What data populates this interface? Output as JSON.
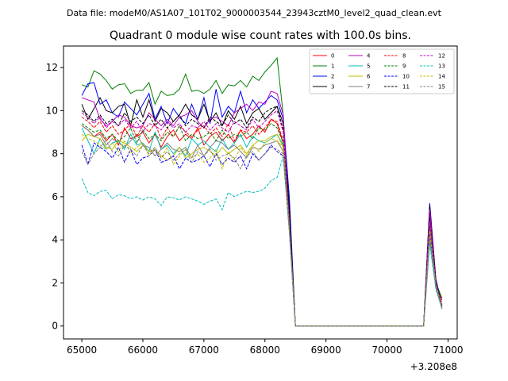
{
  "figure": {
    "suptitle": "Data file: modeM0/AS1A07_101T02_9000003544_23943cztM0_level2_quad_clean.evt"
  },
  "chart_data": {
    "type": "line",
    "title": "Quadrant 0 module wise count rates with 100.0s bins.",
    "xlabel": "",
    "ylabel": "",
    "x_offset_label": "+3.208e8",
    "xlim": [
      64700,
      71150
    ],
    "ylim": [
      -0.6,
      13.0
    ],
    "xticks": [
      65000,
      66000,
      67000,
      68000,
      69000,
      70000,
      71000
    ],
    "xtick_labels": [
      "65000",
      "66000",
      "67000",
      "68000",
      "69000",
      "70000",
      "71000"
    ],
    "yticks": [
      0,
      2,
      4,
      6,
      8,
      10,
      12
    ],
    "ytick_labels": [
      "0",
      "2",
      "4",
      "6",
      "8",
      "10",
      "12"
    ],
    "grid": false,
    "legend_position": "top-right",
    "x": [
      65000,
      65100,
      65200,
      65300,
      65400,
      65500,
      65600,
      65700,
      65800,
      65900,
      66000,
      66100,
      66200,
      66300,
      66400,
      66500,
      66600,
      66700,
      66800,
      66900,
      67000,
      67100,
      67200,
      67300,
      67400,
      67500,
      67600,
      67700,
      67800,
      67900,
      68000,
      68100,
      68200,
      68300,
      68400,
      68500,
      68600,
      68700,
      68800,
      68900,
      69000,
      69100,
      69200,
      69300,
      69400,
      69500,
      69600,
      69700,
      69800,
      69900,
      70000,
      70100,
      70200,
      70300,
      70400,
      70500,
      70600,
      70700,
      70800,
      70900
    ],
    "series": [
      {
        "name": "0",
        "color": "#ff0000",
        "dash": "solid",
        "values": [
          9.3,
          9.1,
          8.8,
          9.0,
          8.6,
          8.9,
          8.4,
          9.2,
          8.7,
          8.8,
          9.0,
          8.5,
          8.9,
          8.3,
          8.8,
          9.1,
          8.6,
          8.9,
          8.7,
          9.2,
          8.4,
          8.8,
          9.0,
          8.6,
          8.9,
          8.5,
          9.1,
          8.7,
          8.9,
          9.3,
          9.0,
          9.6,
          9.4,
          8.5,
          4.8,
          0,
          0,
          0,
          0,
          0,
          0,
          0,
          0,
          0,
          0,
          0,
          0,
          0,
          0,
          0,
          0,
          0,
          0,
          0,
          0,
          0,
          0,
          4.6,
          2.0,
          1.2
        ]
      },
      {
        "name": "1",
        "color": "#008000",
        "dash": "solid",
        "values": [
          11.2,
          11.1,
          11.85,
          11.7,
          11.4,
          11.0,
          11.2,
          11.25,
          10.8,
          10.95,
          10.95,
          11.3,
          10.3,
          10.9,
          10.7,
          10.75,
          11.0,
          11.7,
          10.9,
          10.95,
          10.8,
          11.0,
          11.4,
          10.8,
          11.2,
          11.15,
          11.4,
          11.1,
          11.6,
          11.4,
          11.8,
          12.1,
          12.45,
          9.8,
          5.0,
          0,
          0,
          0,
          0,
          0,
          0,
          0,
          0,
          0,
          0,
          0,
          0,
          0,
          0,
          0,
          0,
          0,
          0,
          0,
          0,
          0,
          0,
          5.2,
          2.0,
          1.3
        ]
      },
      {
        "name": "2",
        "color": "#0000ff",
        "dash": "solid",
        "values": [
          10.7,
          11.25,
          11.3,
          10.3,
          10.5,
          9.9,
          9.7,
          10.4,
          10.1,
          9.8,
          10.3,
          10.8,
          9.6,
          10.2,
          9.4,
          10.1,
          9.7,
          9.4,
          10.3,
          9.6,
          10.6,
          9.4,
          11.0,
          9.7,
          10.2,
          9.9,
          10.9,
          9.9,
          10.5,
          10.1,
          10.4,
          10.7,
          10.5,
          9.6,
          6.0,
          0,
          0,
          0,
          0,
          0,
          0,
          0,
          0,
          0,
          0,
          0,
          0,
          0,
          0,
          0,
          0,
          0,
          0,
          0,
          0,
          0,
          0,
          5.7,
          2.2,
          0.9
        ]
      },
      {
        "name": "3",
        "color": "#000000",
        "dash": "solid",
        "values": [
          10.3,
          9.6,
          10.1,
          10.6,
          10.0,
          9.9,
          10.2,
          10.3,
          9.3,
          10.5,
          9.7,
          10.5,
          9.5,
          10.1,
          9.9,
          9.5,
          9.8,
          10.3,
          9.8,
          9.6,
          10.3,
          9.5,
          9.9,
          9.3,
          10.0,
          9.6,
          10.2,
          9.4,
          9.9,
          10.1,
          9.6,
          9.9,
          10.2,
          9.4,
          5.5,
          0,
          0,
          0,
          0,
          0,
          0,
          0,
          0,
          0,
          0,
          0,
          0,
          0,
          0,
          0,
          0,
          0,
          0,
          0,
          0,
          0,
          0,
          5.6,
          2.1,
          0.9
        ]
      },
      {
        "name": "4",
        "color": "#bf00bf",
        "dash": "solid",
        "values": [
          10.6,
          10.5,
          10.4,
          9.6,
          9.3,
          9.5,
          9.8,
          9.7,
          9.3,
          9.2,
          9.3,
          9.9,
          9.6,
          9.3,
          9.6,
          9.3,
          9.7,
          9.8,
          10.0,
          9.5,
          9.2,
          9.6,
          9.7,
          9.5,
          9.3,
          9.9,
          10.1,
          10.3,
          10.0,
          10.4,
          10.3,
          10.9,
          10.8,
          9.8,
          4.7,
          0,
          0,
          0,
          0,
          0,
          0,
          0,
          0,
          0,
          0,
          0,
          0,
          0,
          0,
          0,
          0,
          0,
          0,
          0,
          0,
          0,
          0,
          5.4,
          2.0,
          0.8
        ]
      },
      {
        "name": "5",
        "color": "#00bfbf",
        "dash": "solid",
        "values": [
          9.2,
          8.6,
          8.0,
          8.7,
          8.2,
          8.5,
          8.6,
          8.2,
          8.9,
          8.4,
          8.5,
          8.1,
          9.0,
          8.2,
          8.4,
          8.0,
          8.3,
          7.9,
          8.7,
          8.4,
          8.6,
          8.3,
          8.1,
          8.7,
          8.2,
          8.5,
          8.9,
          8.3,
          8.8,
          8.6,
          8.5,
          8.7,
          8.9,
          8.4,
          4.5,
          0,
          0,
          0,
          0,
          0,
          0,
          0,
          0,
          0,
          0,
          0,
          0,
          0,
          0,
          0,
          0,
          0,
          0,
          0,
          0,
          0,
          0,
          4.0,
          1.8,
          0.9
        ]
      },
      {
        "name": "6",
        "color": "#bfbf00",
        "dash": "solid",
        "values": [
          8.6,
          8.9,
          8.8,
          8.7,
          8.3,
          8.2,
          8.6,
          8.5,
          8.3,
          8.1,
          8.4,
          8.1,
          8.2,
          7.9,
          7.7,
          7.9,
          8.3,
          7.8,
          8.0,
          8.2,
          8.3,
          8.1,
          7.9,
          8.3,
          8.0,
          8.2,
          8.4,
          8.0,
          8.4,
          8.6,
          8.6,
          8.8,
          8.9,
          8.3,
          4.5,
          0,
          0,
          0,
          0,
          0,
          0,
          0,
          0,
          0,
          0,
          0,
          0,
          0,
          0,
          0,
          0,
          0,
          0,
          0,
          0,
          0,
          0,
          4.5,
          1.9,
          0.9
        ]
      },
      {
        "name": "7",
        "color": "#808080",
        "dash": "solid",
        "values": [
          9.3,
          9.1,
          8.8,
          8.9,
          8.4,
          8.7,
          8.5,
          8.3,
          8.6,
          8.9,
          8.4,
          8.3,
          7.9,
          8.2,
          8.5,
          8.2,
          8.1,
          8.3,
          7.8,
          8.4,
          7.9,
          8.3,
          8.6,
          8.5,
          8.2,
          8.4,
          8.1,
          7.8,
          8.3,
          8.2,
          8.4,
          8.5,
          8.6,
          8.1,
          4.4,
          0,
          0,
          0,
          0,
          0,
          0,
          0,
          0,
          0,
          0,
          0,
          0,
          0,
          0,
          0,
          0,
          0,
          0,
          0,
          0,
          0,
          0,
          4.2,
          1.8,
          0.8
        ]
      },
      {
        "name": "8",
        "color": "#ff0000",
        "dash": "dashed",
        "values": [
          9.7,
          9.5,
          9.2,
          9.5,
          9.0,
          9.3,
          8.9,
          9.1,
          9.4,
          8.8,
          9.3,
          9.0,
          9.4,
          8.7,
          9.2,
          8.8,
          9.3,
          9.0,
          8.8,
          9.1,
          9.3,
          8.9,
          9.2,
          8.8,
          9.4,
          8.6,
          9.1,
          9.0,
          9.3,
          8.9,
          9.2,
          9.6,
          9.5,
          8.6,
          4.8,
          0,
          0,
          0,
          0,
          0,
          0,
          0,
          0,
          0,
          0,
          0,
          0,
          0,
          0,
          0,
          0,
          0,
          0,
          0,
          0,
          0,
          0,
          4.8,
          2.0,
          1.0
        ]
      },
      {
        "name": "9",
        "color": "#008000",
        "dash": "dashed",
        "values": [
          9.4,
          9.2,
          9.0,
          9.1,
          8.7,
          8.9,
          8.6,
          8.8,
          9.2,
          8.5,
          9.1,
          8.7,
          8.9,
          8.6,
          9.0,
          8.8,
          9.3,
          8.6,
          8.9,
          8.7,
          8.8,
          9.0,
          8.6,
          9.1,
          8.7,
          8.9,
          8.8,
          9.0,
          8.7,
          9.2,
          9.1,
          9.4,
          9.2,
          8.5,
          4.7,
          0,
          0,
          0,
          0,
          0,
          0,
          0,
          0,
          0,
          0,
          0,
          0,
          0,
          0,
          0,
          0,
          0,
          0,
          0,
          0,
          0,
          0,
          4.6,
          1.9,
          0.9
        ]
      },
      {
        "name": "10",
        "color": "#0000ff",
        "dash": "dashed",
        "values": [
          8.4,
          7.5,
          8.5,
          8.3,
          8.1,
          7.8,
          8.3,
          7.6,
          8.2,
          7.5,
          7.8,
          7.9,
          8.2,
          7.6,
          7.7,
          7.9,
          7.3,
          7.8,
          7.6,
          7.7,
          7.9,
          7.4,
          8.0,
          7.5,
          7.8,
          7.6,
          7.9,
          7.3,
          8.0,
          7.7,
          8.0,
          8.4,
          8.1,
          7.9,
          4.5,
          0,
          0,
          0,
          0,
          0,
          0,
          0,
          0,
          0,
          0,
          0,
          0,
          0,
          0,
          0,
          0,
          0,
          0,
          0,
          0,
          0,
          0,
          4.3,
          1.9,
          0.9
        ]
      },
      {
        "name": "11",
        "color": "#000000",
        "dash": "dashed",
        "values": [
          10.0,
          9.8,
          9.5,
          9.8,
          9.4,
          9.6,
          9.3,
          9.9,
          9.5,
          9.7,
          9.4,
          9.8,
          9.3,
          9.6,
          9.2,
          9.5,
          9.8,
          9.3,
          9.6,
          9.4,
          9.2,
          9.7,
          9.5,
          9.3,
          9.8,
          9.4,
          9.6,
          9.2,
          9.7,
          9.5,
          9.9,
          10.1,
          10.2,
          9.1,
          5.0,
          0,
          0,
          0,
          0,
          0,
          0,
          0,
          0,
          0,
          0,
          0,
          0,
          0,
          0,
          0,
          0,
          0,
          0,
          0,
          0,
          0,
          0,
          5.0,
          2.1,
          1.0
        ]
      },
      {
        "name": "12",
        "color": "#bf00bf",
        "dash": "dashed",
        "values": [
          9.9,
          9.7,
          9.4,
          9.7,
          9.2,
          9.5,
          9.3,
          9.6,
          9.2,
          9.5,
          9.0,
          9.4,
          9.3,
          9.1,
          9.5,
          9.2,
          9.4,
          9.0,
          9.3,
          9.2,
          9.5,
          9.1,
          9.4,
          9.2,
          9.0,
          9.5,
          9.3,
          9.1,
          9.6,
          9.2,
          9.5,
          9.8,
          10.0,
          9.0,
          4.9,
          0,
          0,
          0,
          0,
          0,
          0,
          0,
          0,
          0,
          0,
          0,
          0,
          0,
          0,
          0,
          0,
          0,
          0,
          0,
          0,
          0,
          0,
          4.9,
          2.0,
          1.0
        ]
      },
      {
        "name": "13",
        "color": "#00bfbf",
        "dash": "dashed",
        "values": [
          6.85,
          6.2,
          6.05,
          6.25,
          6.3,
          5.9,
          6.1,
          6.05,
          5.9,
          6.0,
          5.85,
          6.0,
          5.9,
          5.6,
          6.0,
          5.95,
          5.85,
          6.0,
          5.9,
          5.8,
          5.65,
          5.8,
          5.9,
          5.4,
          6.2,
          6.0,
          6.15,
          6.25,
          6.2,
          6.25,
          6.4,
          6.75,
          6.9,
          7.9,
          4.4,
          0,
          0,
          0,
          0,
          0,
          0,
          0,
          0,
          0,
          0,
          0,
          0,
          0,
          0,
          0,
          0,
          0,
          0,
          0,
          0,
          0,
          0,
          3.8,
          1.7,
          0.8
        ]
      },
      {
        "name": "14",
        "color": "#bfbf00",
        "dash": "dashed",
        "values": [
          8.9,
          8.7,
          8.6,
          8.4,
          8.2,
          8.5,
          8.1,
          8.6,
          8.0,
          8.3,
          8.5,
          7.9,
          8.2,
          7.8,
          8.3,
          7.5,
          7.9,
          8.2,
          7.8,
          8.0,
          7.6,
          7.8,
          8.2,
          7.3,
          8.1,
          7.7,
          8.3,
          7.9,
          8.4,
          8.1,
          8.5,
          8.7,
          8.6,
          8.3,
          4.6,
          0,
          0,
          0,
          0,
          0,
          0,
          0,
          0,
          0,
          0,
          0,
          0,
          0,
          0,
          0,
          0,
          0,
          0,
          0,
          0,
          0,
          0,
          4.4,
          1.9,
          0.9
        ]
      },
      {
        "name": "15",
        "color": "#808080",
        "dash": "dashed",
        "values": [
          8.1,
          7.5,
          8.0,
          8.3,
          8.6,
          8.1,
          7.9,
          8.4,
          8.2,
          7.9,
          8.4,
          8.0,
          8.3,
          7.8,
          8.1,
          7.7,
          8.0,
          8.2,
          7.6,
          8.1,
          7.9,
          8.2,
          7.7,
          7.9,
          8.0,
          7.8,
          7.3,
          7.9,
          8.1,
          7.7,
          8.0,
          8.3,
          8.2,
          8.0,
          4.4,
          0,
          0,
          0,
          0,
          0,
          0,
          0,
          0,
          0,
          0,
          0,
          0,
          0,
          0,
          0,
          0,
          0,
          0,
          0,
          0,
          0,
          0,
          4.1,
          1.8,
          0.8
        ]
      }
    ]
  }
}
